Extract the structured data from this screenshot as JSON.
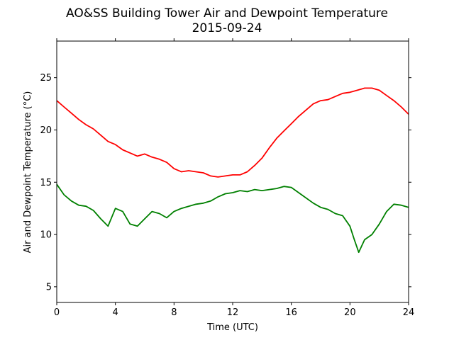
{
  "chart_data": {
    "type": "line",
    "title": "AO&SS Building Tower Air and Dewpoint Temperature",
    "subtitle": "2015-09-24",
    "xlabel": "Time (UTC)",
    "ylabel": "Air and Dewpoint Temperature (°C)",
    "xlim": [
      0,
      24
    ],
    "ylim": [
      3.5,
      28.5
    ],
    "xticks": [
      0,
      4,
      8,
      12,
      16,
      20,
      24
    ],
    "yticks": [
      5,
      10,
      15,
      20,
      25
    ],
    "grid": false,
    "legend": "none",
    "series": [
      {
        "color": "#ff0000",
        "x": [
          0,
          0.5,
          1,
          1.5,
          2,
          2.5,
          3,
          3.5,
          4,
          4.5,
          5,
          5.5,
          6,
          6.5,
          7,
          7.5,
          8,
          8.5,
          9,
          9.5,
          10,
          10.5,
          11,
          11.5,
          12,
          12.5,
          13,
          13.5,
          14,
          14.5,
          15,
          15.5,
          16,
          16.5,
          17,
          17.5,
          18,
          18.5,
          19,
          19.5,
          20,
          20.5,
          21,
          21.5,
          22,
          22.5,
          23,
          23.5,
          24
        ],
        "y": [
          22.8,
          22.2,
          21.6,
          21.0,
          20.5,
          20.1,
          19.5,
          18.9,
          18.6,
          18.1,
          17.8,
          17.5,
          17.7,
          17.4,
          17.2,
          16.9,
          16.3,
          16.0,
          16.1,
          16.0,
          15.9,
          15.6,
          15.5,
          15.6,
          15.7,
          15.7,
          16.0,
          16.6,
          17.3,
          18.3,
          19.2,
          19.9,
          20.6,
          21.3,
          21.9,
          22.5,
          22.8,
          22.9,
          23.2,
          23.5,
          23.6,
          23.8,
          24.0,
          24.0,
          23.8,
          23.3,
          22.8,
          22.2,
          21.5
        ]
      },
      {
        "color": "#008000",
        "x": [
          0,
          0.5,
          1,
          1.5,
          2,
          2.5,
          3,
          3.5,
          4,
          4.5,
          5,
          5.5,
          6,
          6.5,
          7,
          7.5,
          8,
          8.5,
          9,
          9.5,
          10,
          10.5,
          11,
          11.5,
          12,
          12.5,
          13,
          13.5,
          14,
          14.5,
          15,
          15.5,
          16,
          16.5,
          17,
          17.5,
          18,
          18.5,
          19,
          19.5,
          20,
          20.3,
          20.6,
          21,
          21.5,
          22,
          22.5,
          23,
          23.5,
          24
        ],
        "y": [
          14.8,
          13.8,
          13.2,
          12.8,
          12.7,
          12.3,
          11.5,
          10.8,
          12.5,
          12.2,
          11.0,
          10.8,
          11.5,
          12.2,
          12.0,
          11.6,
          12.2,
          12.5,
          12.7,
          12.9,
          13.0,
          13.2,
          13.6,
          13.9,
          14.0,
          14.2,
          14.1,
          14.3,
          14.2,
          14.3,
          14.4,
          14.6,
          14.5,
          14.0,
          13.5,
          13.0,
          12.6,
          12.4,
          12.0,
          11.8,
          10.8,
          9.5,
          8.3,
          9.5,
          10.0,
          11.0,
          12.2,
          12.9,
          12.8,
          12.6
        ]
      }
    ]
  }
}
